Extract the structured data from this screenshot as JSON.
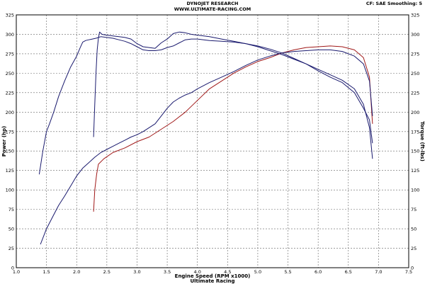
{
  "header": {
    "title": "DYNOJET RESEARCH",
    "subtitle": "WWW.ULTIMATE-RACING.COM",
    "cf_label": "CF: SAE  Smoothing: 5"
  },
  "footer": {
    "caption": "Ultimate Racing"
  },
  "chart_data": {
    "type": "line",
    "title": "DYNOJET RESEARCH",
    "subtitle": "WWW.ULTIMATE-RACING.COM",
    "xlabel": "Engine Speed (RPM x1000)",
    "ylabel": "Power (hp)",
    "y2label": "Torque (ft-lbs)",
    "xlim": [
      1.0,
      7.5
    ],
    "ylim": [
      0,
      325
    ],
    "grid": true,
    "x_ticks": [
      "1.0",
      "1.5",
      "2.0",
      "2.5",
      "3.0",
      "3.5",
      "4.0",
      "4.5",
      "5.0",
      "5.5",
      "6.0",
      "6.5",
      "7.0",
      "7.5"
    ],
    "y_ticks": [
      "0",
      "25",
      "50",
      "75",
      "100",
      "125",
      "150",
      "175",
      "200",
      "225",
      "250",
      "275",
      "300",
      "325"
    ],
    "colors": {
      "blue": "#1a1a6e",
      "red": "#a01818",
      "grid": "#666666"
    },
    "series": [
      {
        "axis": "left",
        "color": "#1a1a6e",
        "x": [
          1.38,
          1.44,
          1.5,
          1.55,
          1.62,
          1.7,
          1.8,
          1.9,
          2.0,
          2.06,
          2.1,
          2.15,
          2.2,
          2.26,
          2.32,
          2.4,
          2.5,
          2.6,
          2.7,
          2.8,
          2.9,
          3.0,
          3.1,
          3.2,
          3.3,
          3.4,
          3.5,
          3.6,
          3.7,
          3.8,
          3.9,
          4.0,
          4.2,
          4.4,
          4.6,
          4.8,
          5.0,
          5.2,
          5.4,
          5.6,
          5.8,
          6.0,
          6.2,
          6.4,
          6.6,
          6.75,
          6.85,
          6.9
        ],
        "y": [
          120,
          150,
          175,
          185,
          200,
          220,
          240,
          258,
          272,
          283,
          290,
          292,
          293,
          294,
          295,
          297,
          296,
          295,
          293,
          291,
          288,
          284,
          280,
          279,
          279,
          280,
          283,
          285,
          289,
          293,
          294,
          294,
          292,
          291,
          290,
          288,
          284,
          279,
          274,
          268,
          262,
          255,
          248,
          241,
          230,
          210,
          180,
          140
        ]
      },
      {
        "axis": "left",
        "color": "#1a1a6e",
        "x": [
          2.28,
          2.3,
          2.32,
          2.34,
          2.36,
          2.38,
          2.42,
          2.5,
          2.6,
          2.7,
          2.8,
          2.9,
          3.0,
          3.1,
          3.2,
          3.3,
          3.4,
          3.5,
          3.6,
          3.7,
          3.8,
          3.9,
          4.0,
          4.2,
          4.4,
          4.6,
          4.8,
          5.0,
          5.2,
          5.4,
          5.6,
          5.8,
          6.0,
          6.2,
          6.4,
          6.6,
          6.75,
          6.85,
          6.9
        ],
        "y": [
          168,
          210,
          250,
          280,
          295,
          303,
          300,
          299,
          298,
          297,
          296,
          294,
          288,
          284,
          283,
          282,
          289,
          294,
          301,
          303,
          302,
          300,
          299,
          297,
          294,
          291,
          288,
          285,
          281,
          276,
          269,
          262,
          253,
          245,
          238,
          225,
          205,
          190,
          160
        ]
      },
      {
        "axis": "right",
        "color": "#a01818",
        "x": [
          2.28,
          2.3,
          2.33,
          2.36,
          2.45,
          2.6,
          2.8,
          3.0,
          3.2,
          3.4,
          3.6,
          3.8,
          4.0,
          4.2,
          4.4,
          4.6,
          4.8,
          5.0,
          5.2,
          5.4,
          5.6,
          5.8,
          6.0,
          6.2,
          6.4,
          6.6,
          6.75,
          6.85,
          6.9
        ],
        "y": [
          72,
          100,
          120,
          133,
          140,
          148,
          154,
          162,
          168,
          178,
          188,
          200,
          215,
          230,
          240,
          250,
          258,
          265,
          270,
          276,
          280,
          283,
          284,
          285,
          284,
          280,
          270,
          245,
          185
        ]
      },
      {
        "axis": "right",
        "color": "#1a1a6e",
        "x": [
          1.4,
          1.5,
          1.6,
          1.7,
          1.8,
          1.9,
          2.0,
          2.1,
          2.2,
          2.3,
          2.4,
          2.5,
          2.6,
          2.7,
          2.8,
          2.9,
          3.0,
          3.1,
          3.2,
          3.3,
          3.4,
          3.5,
          3.6,
          3.7,
          3.8,
          3.9,
          4.0,
          4.2,
          4.4,
          4.6,
          4.8,
          5.0,
          5.2,
          5.4,
          5.6,
          5.8,
          6.0,
          6.2,
          6.4,
          6.6,
          6.75,
          6.85,
          6.9
        ],
        "y": [
          30,
          50,
          65,
          80,
          92,
          105,
          118,
          128,
          135,
          142,
          148,
          152,
          156,
          160,
          164,
          168,
          171,
          175,
          180,
          185,
          195,
          205,
          213,
          218,
          222,
          225,
          230,
          238,
          245,
          252,
          260,
          267,
          272,
          276,
          278,
          279,
          280,
          280,
          278,
          272,
          262,
          240,
          195
        ]
      }
    ]
  }
}
